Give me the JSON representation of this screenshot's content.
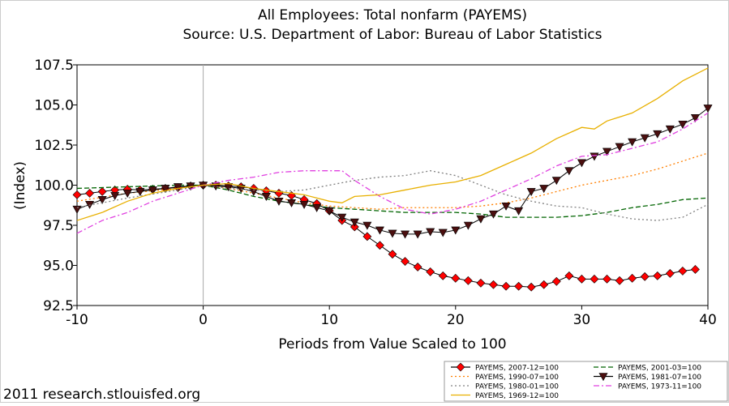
{
  "chart_data": {
    "type": "line",
    "title": "All Employees: Total nonfarm (PAYEMS)",
    "subtitle": "Source: U.S. Department of Labor: Bureau of Labor Statistics",
    "x_label": "Periods from Value Scaled to 100",
    "y_label": "(Index)",
    "footer": "2011 research.stlouisfed.org",
    "xlim": [
      -10,
      40
    ],
    "xticks": [
      -10,
      0,
      10,
      20,
      30,
      40
    ],
    "ylim": [
      92.5,
      107.5
    ],
    "yticks": [
      92.5,
      {
        "value": 95,
        "label": "95.0"
      },
      97.5,
      {
        "value": 100,
        "label": "100.0"
      },
      102.5,
      {
        "value": 105,
        "label": "105.0"
      },
      107.5
    ],
    "reference_x": 0,
    "series": [
      {
        "name": "PAYEMS, 2007-12=100",
        "color": "#ff0000",
        "line_color": "#000000",
        "marker": "diamond",
        "style": "solid",
        "x": [
          -10,
          -9,
          -8,
          -7,
          -6,
          -5,
          -4,
          -3,
          -2,
          -1,
          0,
          1,
          2,
          3,
          4,
          5,
          6,
          7,
          8,
          9,
          10,
          11,
          12,
          13,
          14,
          15,
          16,
          17,
          18,
          19,
          20,
          21,
          22,
          23,
          24,
          25,
          26,
          27,
          28,
          29,
          30,
          31,
          32,
          33,
          34,
          35,
          36,
          37,
          38,
          39
        ],
        "values": [
          99.4,
          99.5,
          99.6,
          99.7,
          99.75,
          99.7,
          99.75,
          99.8,
          99.85,
          99.95,
          100,
          100,
          99.95,
          99.9,
          99.8,
          99.65,
          99.5,
          99.35,
          99.1,
          98.85,
          98.4,
          97.8,
          97.4,
          96.8,
          96.25,
          95.7,
          95.25,
          94.9,
          94.6,
          94.35,
          94.2,
          94.05,
          93.9,
          93.8,
          93.7,
          93.7,
          93.65,
          93.8,
          94.0,
          94.35,
          94.15,
          94.15,
          94.15,
          94.05,
          94.2,
          94.3,
          94.35,
          94.5,
          94.65,
          94.75
        ]
      },
      {
        "name": "PAYEMS, 2001-03=100",
        "color": "#006400",
        "style": "dashed",
        "x": [
          -10,
          -6,
          -2,
          0,
          2,
          4,
          6,
          8,
          10,
          12,
          14,
          16,
          18,
          20,
          22,
          24,
          26,
          28,
          30,
          32,
          34,
          36,
          38,
          40
        ],
        "values": [
          99.8,
          99.9,
          100,
          100,
          99.7,
          99.3,
          99.0,
          98.8,
          98.6,
          98.5,
          98.4,
          98.3,
          98.3,
          98.3,
          98.2,
          98.0,
          98.0,
          98.0,
          98.1,
          98.3,
          98.6,
          98.8,
          99.1,
          99.2
        ]
      },
      {
        "name": "PAYEMS, 1990-07=100",
        "color": "#ff7f00",
        "style": "dotted",
        "x": [
          -10,
          -6,
          -2,
          0,
          2,
          4,
          6,
          8,
          10,
          12,
          14,
          16,
          18,
          20,
          22,
          24,
          26,
          28,
          30,
          32,
          34,
          36,
          38,
          40
        ],
        "values": [
          99.0,
          99.5,
          99.8,
          100,
          99.8,
          99.5,
          99.2,
          98.9,
          98.7,
          98.6,
          98.5,
          98.6,
          98.6,
          98.6,
          98.7,
          98.9,
          99.2,
          99.6,
          100.0,
          100.3,
          100.6,
          101.0,
          101.5,
          102.0
        ]
      },
      {
        "name": "PAYEMS, 1981-07=100",
        "color": "#4b0f0f",
        "line_color": "#000000",
        "marker": "triangle-down",
        "style": "solid",
        "x": [
          -10,
          -9,
          -8,
          -7,
          -6,
          -5,
          -4,
          -3,
          -2,
          -1,
          0,
          1,
          2,
          3,
          4,
          5,
          6,
          7,
          8,
          9,
          10,
          11,
          12,
          13,
          14,
          15,
          16,
          17,
          18,
          19,
          20,
          21,
          22,
          23,
          24,
          25,
          26,
          27,
          28,
          29,
          30,
          31,
          32,
          33,
          34,
          35,
          36,
          37,
          38,
          39,
          40
        ],
        "values": [
          98.5,
          98.8,
          99.1,
          99.35,
          99.5,
          99.6,
          99.7,
          99.8,
          99.9,
          99.95,
          100,
          99.95,
          99.9,
          99.8,
          99.6,
          99.3,
          99.0,
          98.9,
          98.8,
          98.6,
          98.4,
          98.0,
          97.7,
          97.5,
          97.2,
          97.0,
          96.95,
          96.95,
          97.1,
          97.05,
          97.2,
          97.5,
          97.9,
          98.2,
          98.7,
          98.4,
          99.6,
          99.8,
          100.3,
          100.9,
          101.4,
          101.8,
          102.1,
          102.4,
          102.7,
          102.95,
          103.2,
          103.5,
          103.8,
          104.2,
          104.8
        ]
      },
      {
        "name": "PAYEMS, 1980-01=100",
        "color": "#808080",
        "style": "dotted",
        "x": [
          -10,
          -6,
          -2,
          0,
          2,
          4,
          6,
          8,
          10,
          12,
          14,
          16,
          18,
          20,
          22,
          24,
          26,
          28,
          30,
          32,
          34,
          36,
          38,
          40
        ],
        "values": [
          98.6,
          99.2,
          99.7,
          100,
          99.8,
          99.7,
          99.6,
          99.7,
          100.0,
          100.3,
          100.5,
          100.6,
          100.9,
          100.6,
          100.0,
          99.4,
          99.0,
          98.7,
          98.6,
          98.2,
          97.9,
          97.8,
          98.0,
          98.8
        ]
      },
      {
        "name": "PAYEMS, 1973-11=100",
        "color": "#e040e0",
        "style": "dashdot",
        "x": [
          -10,
          -8,
          -6,
          -4,
          -2,
          0,
          2,
          4,
          6,
          8,
          10,
          11,
          12,
          14,
          16,
          18,
          20,
          22,
          24,
          26,
          28,
          30,
          32,
          34,
          36,
          38,
          40
        ],
        "values": [
          97.0,
          97.8,
          98.3,
          99.0,
          99.5,
          100,
          100.3,
          100.5,
          100.8,
          100.9,
          100.9,
          100.9,
          100.3,
          99.3,
          98.5,
          98.2,
          98.5,
          99.0,
          99.7,
          100.4,
          101.2,
          101.8,
          101.9,
          102.3,
          102.7,
          103.5,
          104.5
        ]
      },
      {
        "name": "PAYEMS, 1969-12=100",
        "color": "#e8b000",
        "style": "solid",
        "x": [
          -10,
          -8,
          -6,
          -4,
          -2,
          0,
          2,
          4,
          6,
          8,
          10,
          11,
          12,
          14,
          16,
          18,
          20,
          22,
          24,
          26,
          28,
          30,
          31,
          32,
          34,
          36,
          38,
          40
        ],
        "values": [
          97.8,
          98.3,
          99.0,
          99.5,
          99.8,
          100,
          100.1,
          99.8,
          99.6,
          99.4,
          99.0,
          98.9,
          99.3,
          99.4,
          99.7,
          100.0,
          100.2,
          100.6,
          101.3,
          102.0,
          102.9,
          103.6,
          103.5,
          104.0,
          104.5,
          105.4,
          106.5,
          107.3
        ]
      }
    ]
  }
}
